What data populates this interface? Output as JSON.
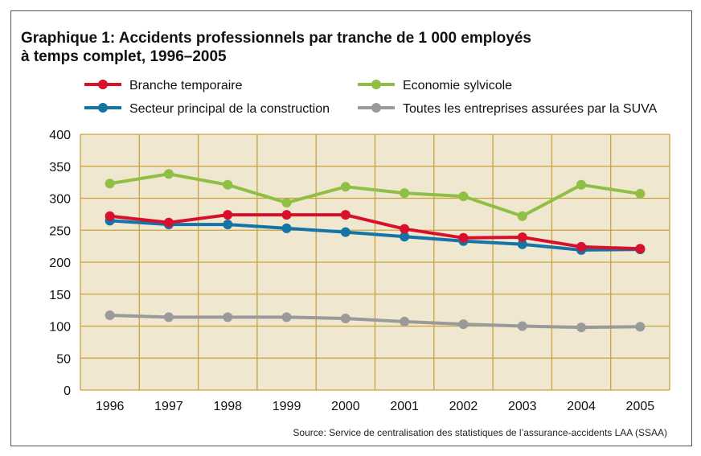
{
  "chart_data": {
    "type": "line",
    "title": "Graphique 1: Accidents professionnels par tranche de 1 000 employés à temps complet, 1996–2005",
    "title_lines": [
      "Graphique 1: Accidents professionnels par tranche de 1 000 employés",
      "à temps complet, 1996–2005"
    ],
    "categories": [
      "1996",
      "1997",
      "1998",
      "1999",
      "2000",
      "2001",
      "2002",
      "2003",
      "2004",
      "2005"
    ],
    "ylim": [
      0,
      400
    ],
    "yticks": [
      0,
      50,
      100,
      150,
      200,
      250,
      300,
      350,
      400
    ],
    "grid": true,
    "legend_position": "top",
    "background_color": "#efe7cf",
    "grid_color": "#c9a43c",
    "series": [
      {
        "name": "Branche temporaire",
        "color": "#d8102c",
        "values": [
          272,
          262,
          274,
          274,
          274,
          252,
          238,
          239,
          224,
          221
        ]
      },
      {
        "name": "Economie sylvicole",
        "color": "#8fbf45",
        "values": [
          323,
          338,
          321,
          293,
          318,
          308,
          303,
          272,
          321,
          307
        ]
      },
      {
        "name": "Secteur principal de la construction",
        "color": "#1474a8",
        "values": [
          265,
          259,
          259,
          253,
          247,
          240,
          233,
          228,
          219,
          220
        ]
      },
      {
        "name": "Toutes les entreprises assurées par la SUVA",
        "color": "#9a9a9a",
        "values": [
          117,
          114,
          114,
          114,
          112,
          107,
          103,
          100,
          98,
          99
        ]
      }
    ],
    "source": "Source: Service de centralisation des statistiques de l’assurance-accidents LAA (SSAA)"
  }
}
